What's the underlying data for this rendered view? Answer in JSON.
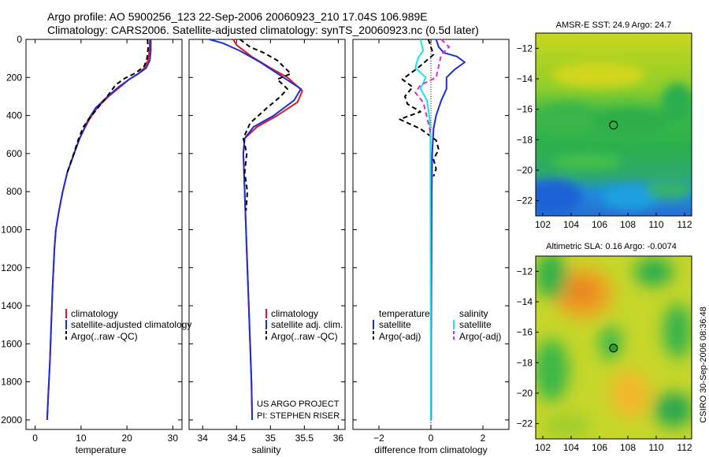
{
  "header": {
    "line1": "Argo profile: AO 5900256_123 22-Sep-2006 20060923_210 17.04S 106.989E",
    "line2": "Climatology: CARS2006. Satellite-adjusted climatology: synTS_20060923.nc (0.5d later)"
  },
  "colors": {
    "climatology": "#e8141b",
    "satellite": "#1b2fd6",
    "argo": "#000000",
    "salinity_satellite": "#18e6e6",
    "salinity_argo": "#d62ad6",
    "marker_sst": "#3aaa3a",
    "marker_sla": "#2da02d"
  },
  "annotations": {
    "project_line1": "US ARGO PROJECT",
    "project_line2": "PI: STEPHEN RISER",
    "side_credit": "CSIRO 30-Sep-2006 08:36:48"
  },
  "chart_data": [
    {
      "type": "line",
      "name": "temperature-profile",
      "xlabel": "temperature",
      "xlim": [
        -2,
        32
      ],
      "xticks": [
        0,
        10,
        20,
        30
      ],
      "ylim": [
        0,
        2050
      ],
      "yticks": [
        0,
        200,
        400,
        600,
        800,
        1000,
        1200,
        1400,
        1600,
        1800,
        2000
      ],
      "y_reversed": true,
      "legend": [
        "climatology",
        "satellite-adjusted climatology",
        "Argo(..raw -QC)"
      ],
      "series": [
        {
          "name": "climatology",
          "color_key": "climatology",
          "dash": false,
          "x": [
            25,
            24.9,
            24.6,
            23.8,
            22.5,
            20.5,
            18.5,
            16,
            13.5,
            11.8,
            10.5,
            9.7,
            8.5,
            7,
            6,
            5.2,
            4.5,
            4.2,
            3.8,
            3.5,
            3.2,
            2.9,
            2.6
          ],
          "y": [
            0,
            60,
            110,
            150,
            180,
            210,
            250,
            300,
            360,
            420,
            480,
            520,
            600,
            700,
            800,
            900,
            1000,
            1100,
            1300,
            1500,
            1700,
            1850,
            2000
          ]
        },
        {
          "name": "satellite",
          "color_key": "satellite",
          "dash": false,
          "x": [
            25.2,
            25.2,
            25,
            24.2,
            22.5,
            20.5,
            18.2,
            15.8,
            13.2,
            11.6,
            10.5,
            9.7,
            8.5,
            7,
            6,
            5.2,
            4.5,
            4.2,
            3.8,
            3.5,
            3.2,
            2.9,
            2.6
          ],
          "y": [
            0,
            60,
            110,
            150,
            180,
            210,
            250,
            300,
            360,
            420,
            480,
            520,
            600,
            700,
            800,
            900,
            1000,
            1100,
            1300,
            1500,
            1700,
            1850,
            2000
          ]
        },
        {
          "name": "argo",
          "color_key": "argo",
          "dash": true,
          "x": [
            24.5,
            24.6,
            24.4,
            23.8,
            22,
            19.5,
            17.5,
            16,
            14,
            12,
            10.5,
            9.5,
            8.4,
            7
          ],
          "y": [
            0,
            50,
            100,
            140,
            175,
            205,
            240,
            290,
            350,
            410,
            460,
            520,
            600,
            700
          ]
        }
      ]
    },
    {
      "type": "line",
      "name": "salinity-profile",
      "xlabel": "salinity",
      "xlim": [
        33.8,
        36.1
      ],
      "xticks": [
        34,
        34.5,
        35,
        35.5,
        36
      ],
      "ylim": [
        0,
        2050
      ],
      "y_reversed": true,
      "legend": [
        "climatology",
        "satellite adj. clim.",
        "Argo(..raw -QC)"
      ],
      "series": [
        {
          "name": "climatology",
          "color_key": "climatology",
          "dash": false,
          "x": [
            34.45,
            34.5,
            34.72,
            35,
            35.25,
            35.47,
            35.4,
            35.1,
            34.8,
            34.62,
            34.6,
            34.62,
            34.64,
            34.66,
            34.68,
            34.7,
            34.72,
            34.73
          ],
          "y": [
            0,
            30,
            90,
            150,
            200,
            270,
            330,
            400,
            460,
            520,
            600,
            800,
            1000,
            1200,
            1400,
            1600,
            1800,
            2000
          ]
        },
        {
          "name": "satellite",
          "color_key": "satellite",
          "dash": false,
          "x": [
            34.1,
            34.3,
            34.55,
            34.85,
            35.15,
            35.45,
            35.35,
            35.05,
            34.75,
            34.62,
            34.6,
            34.62,
            34.64,
            34.66,
            34.68,
            34.7,
            34.72,
            34.73
          ],
          "y": [
            0,
            20,
            60,
            120,
            190,
            260,
            320,
            400,
            460,
            520,
            600,
            800,
            1000,
            1200,
            1400,
            1600,
            1800,
            2000
          ]
        },
        {
          "name": "argo",
          "color_key": "argo",
          "dash": true,
          "x": [
            34.55,
            34.7,
            34.9,
            35.1,
            35.3,
            35.1,
            35.25,
            35.15,
            34.95,
            34.7,
            34.6,
            34.65,
            34.62,
            34.66,
            34.64
          ],
          "y": [
            0,
            40,
            70,
            110,
            180,
            210,
            260,
            300,
            360,
            440,
            520,
            600,
            700,
            800,
            900
          ]
        }
      ]
    },
    {
      "type": "line",
      "name": "difference-profile",
      "xlabel": "difference from climatology",
      "xlim": [
        -3,
        3
      ],
      "xticks": [
        -2,
        0,
        2
      ],
      "ylim": [
        0,
        2050
      ],
      "y_reversed": true,
      "legend_titles": [
        "temperature",
        "salinity"
      ],
      "legend": [
        "satellite",
        "Argo(-adj)",
        "satellite",
        "Argo(-adj)"
      ],
      "series": [
        {
          "name": "temperature satellite",
          "color_key": "satellite",
          "dash": false,
          "x": [
            0.2,
            0.3,
            0.5,
            1.0,
            1.3,
            0.9,
            0.6,
            0.6,
            0.4,
            0.2,
            0.1,
            0.05,
            0.03,
            0.02,
            0.01,
            0.01
          ],
          "y": [
            0,
            40,
            70,
            90,
            120,
            160,
            200,
            260,
            320,
            400,
            470,
            600,
            800,
            1200,
            1600,
            2000
          ]
        },
        {
          "name": "temperature argo",
          "color_key": "argo",
          "dash": true,
          "x": [
            -0.1,
            0.0,
            0.1,
            -0.5,
            -1.1,
            -0.7,
            -1.0,
            -0.9,
            -0.4,
            -1.2,
            -0.4,
            0.2,
            0.3,
            0.1,
            0.2,
            0.1
          ],
          "y": [
            0,
            40,
            80,
            150,
            210,
            250,
            300,
            340,
            380,
            420,
            470,
            530,
            580,
            630,
            680,
            720
          ]
        },
        {
          "name": "salinity satellite",
          "color_key": "salinity_satellite",
          "dash": false,
          "x": [
            -0.4,
            -0.3,
            -0.5,
            -0.6,
            -0.2,
            -0.4,
            -0.15,
            -0.05,
            -0.02,
            -0.02,
            -0.01,
            -0.01
          ],
          "y": [
            0,
            60,
            100,
            150,
            200,
            260,
            320,
            420,
            520,
            800,
            1400,
            2000
          ]
        },
        {
          "name": "salinity argo",
          "color_key": "salinity_argo",
          "dash": true,
          "x": [
            0.4,
            0.7,
            0.4,
            0.3,
            0.2,
            -0.4,
            -0.6,
            -0.3,
            -0.2,
            -0.1,
            0.0
          ],
          "y": [
            0,
            40,
            80,
            140,
            200,
            240,
            280,
            330,
            380,
            440,
            500
          ]
        }
      ]
    },
    {
      "type": "heatmap",
      "name": "sst-map",
      "title": "AMSR-E SST: 24.9 Argo: 24.7",
      "xlim": [
        101.5,
        112.5
      ],
      "ylim": [
        -23,
        -11
      ],
      "xticks": [
        102,
        104,
        106,
        108,
        110,
        112
      ],
      "yticks": [
        -12,
        -14,
        -16,
        -18,
        -20,
        -22
      ],
      "marker": {
        "lon": 106.989,
        "lat": -17.04
      },
      "marker_color_key": "marker_sst"
    },
    {
      "type": "heatmap",
      "name": "sla-map",
      "title": "Altimetric SLA: 0.16 Argo: -0.0074",
      "xlim": [
        101.5,
        112.5
      ],
      "ylim": [
        -23,
        -11
      ],
      "xticks": [
        102,
        104,
        106,
        108,
        110,
        112
      ],
      "yticks": [
        -12,
        -14,
        -16,
        -18,
        -20,
        -22
      ],
      "marker": {
        "lon": 106.989,
        "lat": -17.04
      },
      "marker_color_key": "marker_sla"
    }
  ]
}
